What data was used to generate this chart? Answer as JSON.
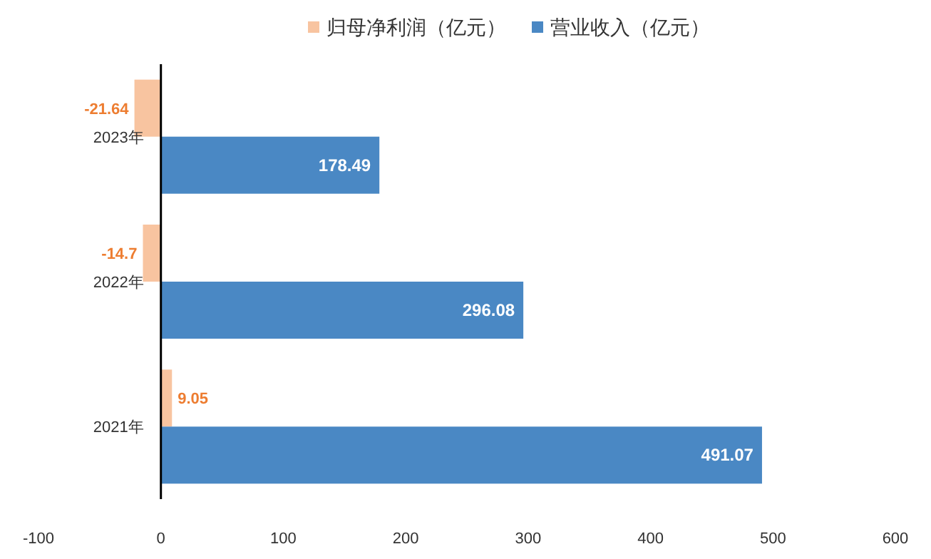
{
  "chart_data": {
    "type": "bar",
    "orientation": "horizontal",
    "categories": [
      "2023年",
      "2022年",
      "2021年"
    ],
    "series": [
      {
        "name": "归母净利润（亿元）",
        "color": "#f8c4a0",
        "values": [
          -21.64,
          -14.7,
          9.05
        ]
      },
      {
        "name": "营业收入（亿元）",
        "color": "#4a88c4",
        "values": [
          178.49,
          296.08,
          491.07
        ]
      }
    ],
    "xlim": [
      -100,
      600
    ],
    "xticks": [
      -100,
      0,
      100,
      200,
      300,
      400,
      500,
      600
    ],
    "data_labels": true,
    "legend": "top",
    "grid": false
  }
}
